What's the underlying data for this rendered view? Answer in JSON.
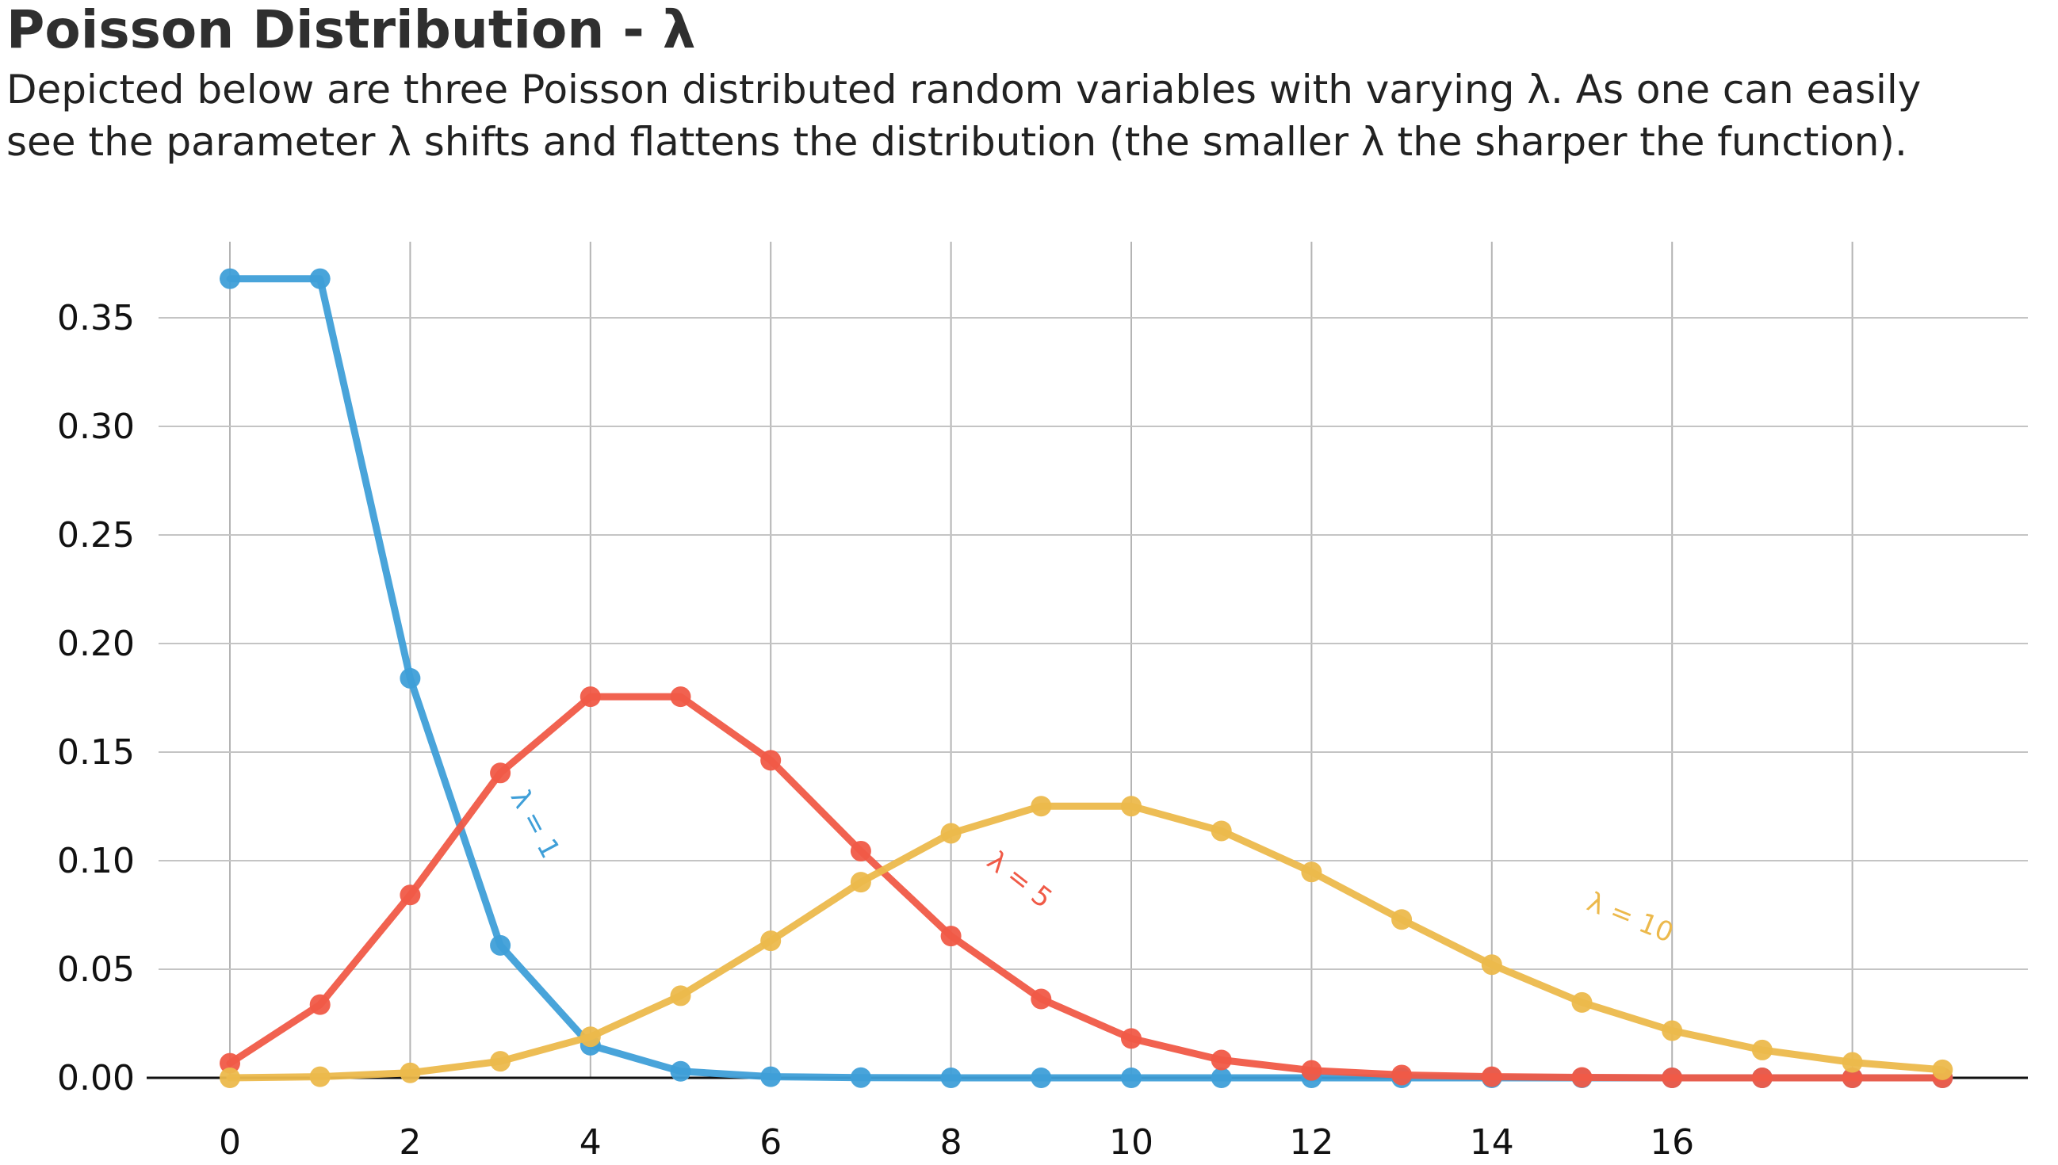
{
  "header": {
    "title": "Poisson Distribution - λ",
    "subtitle_line1": "Depicted below are three Poisson distributed random variables with varying λ. As one can easily",
    "subtitle_line2": "see the parameter λ shifts and flattens the distribution (the smaller λ the sharper the function)."
  },
  "chart_data": {
    "type": "line",
    "x": [
      0,
      1,
      2,
      3,
      4,
      5,
      6,
      7,
      8,
      9,
      10,
      11,
      12,
      13,
      14,
      15,
      16,
      17,
      18,
      19
    ],
    "xlim": [
      0,
      19.5
    ],
    "ylim": [
      0,
      0.38
    ],
    "xticks": [
      0,
      2,
      4,
      6,
      8,
      10,
      12,
      14,
      16
    ],
    "xtick_labels": [
      "0",
      "2",
      "4",
      "6",
      "8",
      "10",
      "12",
      "14",
      "16"
    ],
    "yticks": [
      0,
      0.05,
      0.1,
      0.15,
      0.2,
      0.25,
      0.3,
      0.35
    ],
    "ytick_labels": [
      "0.00",
      "0.05",
      "0.10",
      "0.15",
      "0.20",
      "0.25",
      "0.30",
      "0.35"
    ],
    "xgrid_values": [
      0,
      2,
      4,
      6,
      8,
      10,
      12,
      14,
      16,
      18
    ],
    "grid": true,
    "series": [
      {
        "name": "λ = 1",
        "color": "#3f9fd8",
        "values": [
          0.368,
          0.368,
          0.184,
          0.061,
          0.015,
          0.003,
          0.0005,
          0.0001,
          0,
          0,
          0,
          0,
          0,
          0,
          0,
          0,
          0,
          0,
          0,
          0
        ],
        "label_at": [
          3.3,
          0.115
        ],
        "label_angle": 62
      },
      {
        "name": "λ = 5",
        "color": "#f05a47",
        "values": [
          0.0067,
          0.0337,
          0.0842,
          0.1404,
          0.1755,
          0.1755,
          0.1462,
          0.1044,
          0.0653,
          0.0363,
          0.0181,
          0.0082,
          0.0034,
          0.0013,
          0.0005,
          0.0002,
          0.0,
          0.0,
          0.0,
          0.0
        ],
        "label_at": [
          8.7,
          0.088
        ],
        "label_angle": 38
      },
      {
        "name": "λ = 10",
        "color": "#ecb94c",
        "values": [
          0.0,
          0.0005,
          0.0023,
          0.0076,
          0.0189,
          0.0378,
          0.0631,
          0.0901,
          0.1126,
          0.1251,
          0.1251,
          0.1137,
          0.0948,
          0.0729,
          0.0521,
          0.0347,
          0.0217,
          0.0128,
          0.0071,
          0.0037
        ],
        "label_at": [
          15.5,
          0.07
        ],
        "label_angle": 22
      }
    ]
  }
}
